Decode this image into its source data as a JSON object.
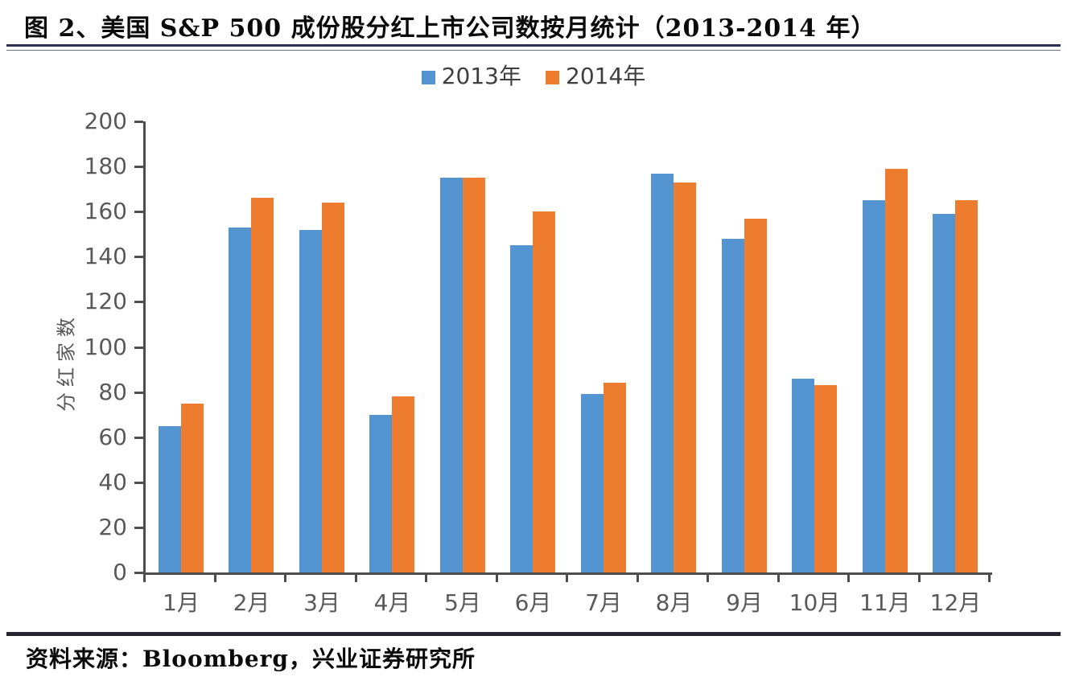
{
  "figure": {
    "title": "图 2、美国 S&P 500 成份股分红上市公司数按月统计（2013-2014 年）",
    "source": "资料来源：Bloomberg，兴业证券研究所"
  },
  "colors": {
    "series_2013": "#5494D0",
    "series_2014": "#ED7C2F",
    "axis": "#4d4d4d",
    "tick_text": "#595959",
    "title_rule": "#2b3054",
    "footer_rule": "#23252e"
  },
  "chart_data": {
    "type": "bar",
    "title": "美国 S&P 500 成份股分红上市公司数按月统计（2013-2014 年）",
    "xlabel": "",
    "ylabel": "分红家数",
    "ylim": [
      0,
      200
    ],
    "ytick_step": 20,
    "grid": false,
    "legend_position": "top-center",
    "categories": [
      "1月",
      "2月",
      "3月",
      "4月",
      "5月",
      "6月",
      "7月",
      "8月",
      "9月",
      "10月",
      "11月",
      "12月"
    ],
    "series": [
      {
        "name": "2013年",
        "color": "#5494D0",
        "values": [
          65,
          153,
          152,
          70,
          175,
          145,
          79,
          177,
          148,
          86,
          165,
          159
        ]
      },
      {
        "name": "2014年",
        "color": "#ED7C2F",
        "values": [
          75,
          166,
          164,
          78,
          175,
          160,
          84,
          173,
          157,
          83,
          179,
          165
        ]
      }
    ]
  }
}
